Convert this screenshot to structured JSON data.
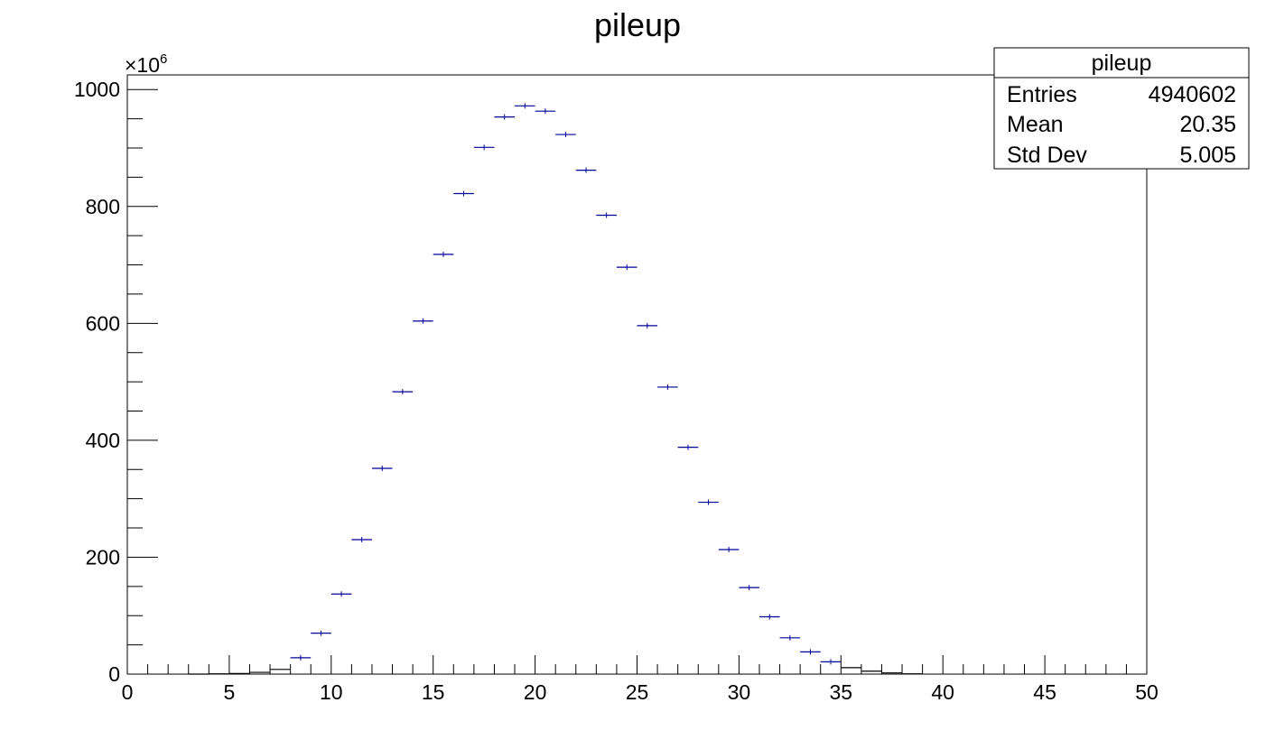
{
  "chart_data": {
    "type": "scatter",
    "title": "pileup",
    "xlabel": "",
    "ylabel": "",
    "xlim": [
      0,
      50
    ],
    "ylim": [
      0,
      1000
    ],
    "y_multiplier_label": "×10",
    "y_multiplier_exponent": "6",
    "x_ticks": [
      "0",
      "5",
      "10",
      "15",
      "20",
      "25",
      "30",
      "35",
      "40",
      "45",
      "50"
    ],
    "y_ticks": [
      "0",
      "200",
      "400",
      "600",
      "800",
      "1000"
    ],
    "bin_width": 1,
    "series": [
      {
        "name": "pileup",
        "color": "#000099",
        "x": [
          3.5,
          4.5,
          5.5,
          6.5,
          7.5,
          8.5,
          9.5,
          10.5,
          11.5,
          12.5,
          13.5,
          14.5,
          15.5,
          16.5,
          17.5,
          18.5,
          19.5,
          20.5,
          21.5,
          22.5,
          23.5,
          24.5,
          25.5,
          26.5,
          27.5,
          28.5,
          29.5,
          30.5,
          31.5,
          32.5,
          33.5,
          34.5,
          35.5,
          36.5,
          37.5,
          38.5
        ],
        "values": [
          0,
          0.5,
          1,
          3,
          8,
          28,
          70,
          137,
          230,
          352,
          483,
          604,
          718,
          822,
          901,
          953,
          972,
          963,
          923,
          862,
          785,
          696,
          596,
          491,
          388,
          294,
          213,
          148,
          98,
          62,
          38,
          21,
          11,
          5,
          2,
          0.5
        ]
      }
    ],
    "stats": {
      "title": "pileup",
      "rows": [
        {
          "label": "Entries",
          "value": "4940602"
        },
        {
          "label": "Mean",
          "value": "20.35"
        },
        {
          "label": "Std Dev",
          "value": "5.005"
        }
      ]
    }
  }
}
